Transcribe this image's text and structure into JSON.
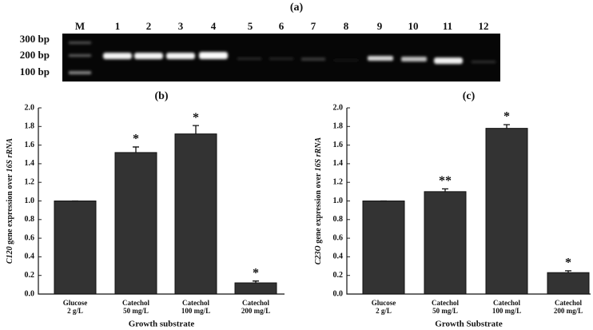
{
  "gel": {
    "label": "(a)",
    "lanes": [
      "M",
      "1",
      "2",
      "3",
      "4",
      "5",
      "6",
      "7",
      "8",
      "9",
      "10",
      "11",
      "12"
    ],
    "markers": [
      "300 bp",
      "200 bp",
      "100 bp"
    ]
  },
  "chart_data": [
    {
      "type": "bar",
      "title": "(b)",
      "y_label": [
        "C120",
        " gene expression over ",
        "16S rRNA"
      ],
      "x_label": "Growth substrate",
      "categories": [
        [
          "Glucose",
          "2 g/L"
        ],
        [
          "Catechol",
          "50 mg/L"
        ],
        [
          "Catechol",
          "100 mg/L"
        ],
        [
          "Catechol",
          "200 mg/L"
        ]
      ],
      "values": [
        1.0,
        1.52,
        1.72,
        0.12
      ],
      "errors": [
        0,
        0.06,
        0.09,
        0.02
      ],
      "significance": [
        null,
        "*",
        "*",
        "*"
      ],
      "color": "#333333",
      "ylim": [
        0,
        2.0
      ],
      "yticks": [
        {
          "value": 0,
          "label": "0.0"
        },
        {
          "value": 0.2,
          "label": "0.2"
        },
        {
          "value": 0.4,
          "label": "0.4"
        },
        {
          "value": 0.6,
          "label": "0.6"
        },
        {
          "value": 0.8,
          "label": "0.8"
        },
        {
          "value": 1.0,
          "label": "1.0"
        },
        {
          "value": 1.2,
          "label": "1.2"
        },
        {
          "value": 1.4,
          "label": "1.4"
        },
        {
          "value": 1.6,
          "label": "1.6"
        },
        {
          "value": 1.8,
          "label": "1.8"
        },
        {
          "value": 2.0,
          "label": "2.0"
        }
      ]
    },
    {
      "type": "bar",
      "title": "(c)",
      "y_label": [
        "C23O",
        " gene expression over ",
        "16S rRNA"
      ],
      "x_label": "Growth Substrate",
      "categories": [
        [
          "Glucose",
          "2 g/L"
        ],
        [
          "Catechol",
          "50 mg/L"
        ],
        [
          "Catechol",
          "100 mg/L"
        ],
        [
          "Catechol",
          "200 mg/L"
        ]
      ],
      "values": [
        1.0,
        1.1,
        1.78,
        0.23
      ],
      "errors": [
        0,
        0.03,
        0.04,
        0.02
      ],
      "significance": [
        null,
        "**",
        "*",
        "*"
      ],
      "color": "#333333",
      "ylim": [
        0,
        2.0
      ],
      "yticks": [
        {
          "value": 0,
          "label": "0.0"
        },
        {
          "value": 0.2,
          "label": "0.2"
        },
        {
          "value": 0.4,
          "label": "0.4"
        },
        {
          "value": 0.6,
          "label": "0.6"
        },
        {
          "value": 0.8,
          "label": "0.8"
        },
        {
          "value": 1.0,
          "label": "1.0"
        },
        {
          "value": 1.2,
          "label": "1.2"
        },
        {
          "value": 1.4,
          "label": "1.4"
        },
        {
          "value": 1.6,
          "label": "1.6"
        },
        {
          "value": 1.8,
          "label": "1.8"
        },
        {
          "value": 2.0,
          "label": "2.0"
        }
      ]
    }
  ]
}
